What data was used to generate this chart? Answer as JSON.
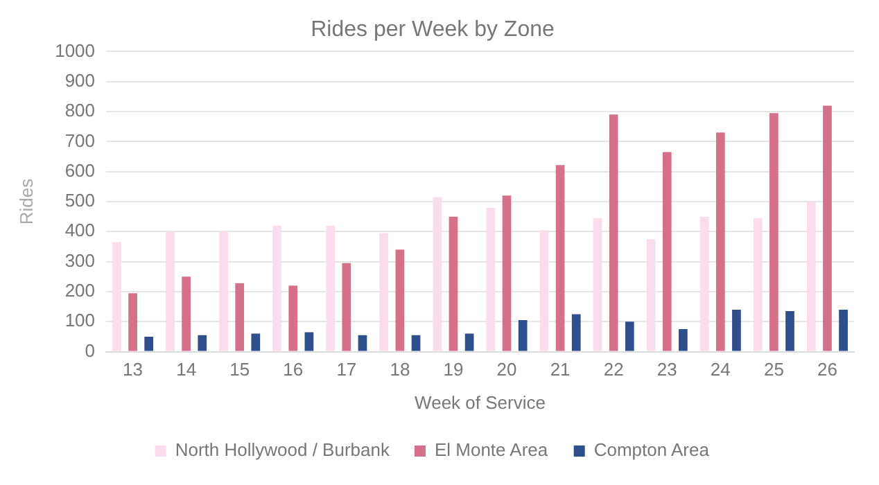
{
  "chart_data": {
    "type": "bar",
    "title": "Rides per Week by Zone",
    "xlabel": "Week of Service",
    "ylabel": "Rides",
    "categories": [
      "13",
      "14",
      "15",
      "16",
      "17",
      "18",
      "19",
      "20",
      "21",
      "22",
      "23",
      "24",
      "25",
      "26"
    ],
    "series": [
      {
        "name": "North Hollywood / Burbank",
        "color": "#f9dded",
        "values": [
          365,
          400,
          400,
          420,
          420,
          395,
          515,
          480,
          405,
          445,
          375,
          450,
          445,
          500
        ]
      },
      {
        "name": "El Monte Area",
        "color": "#d4708a",
        "values": [
          195,
          250,
          228,
          220,
          295,
          340,
          450,
          520,
          622,
          790,
          665,
          730,
          795,
          820
        ]
      },
      {
        "name": "Compton Area",
        "color": "#2e4e8c",
        "values": [
          50,
          55,
          60,
          65,
          55,
          55,
          60,
          105,
          125,
          100,
          75,
          140,
          135,
          140
        ]
      }
    ],
    "ylim": [
      0,
      1000
    ],
    "yticks": [
      0,
      100,
      200,
      300,
      400,
      500,
      600,
      700,
      800,
      900,
      1000
    ],
    "grid": "y",
    "legend": "bottom"
  }
}
